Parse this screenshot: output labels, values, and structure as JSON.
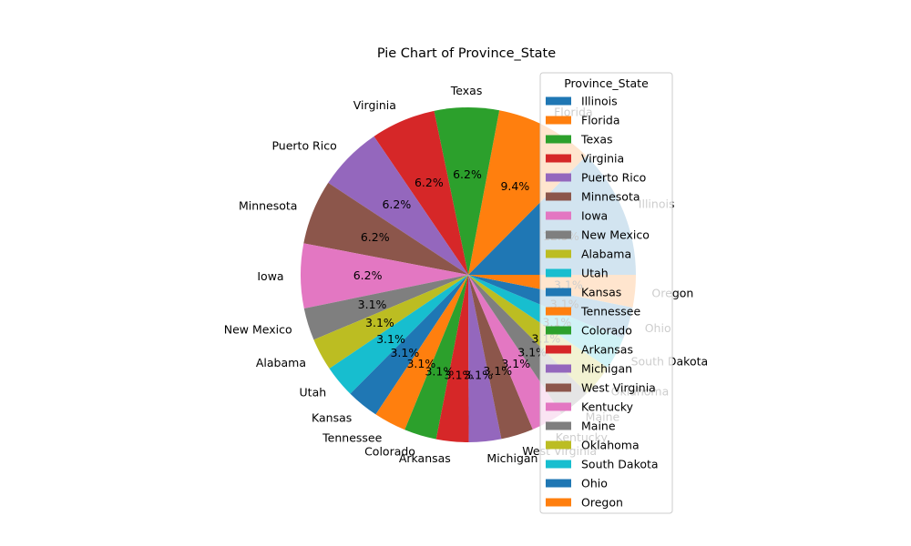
{
  "chart_data": {
    "type": "pie",
    "title": "Pie Chart of Province_State",
    "legend": {
      "title": "Province_State",
      "placement": "upper-right"
    },
    "start_angle_deg": 0,
    "direction": "counterclockwise",
    "slices": [
      {
        "label": "Illinois",
        "value": 12.5,
        "pct_label": "12.5%",
        "color": "#1f77b4"
      },
      {
        "label": "Florida",
        "value": 9.4,
        "pct_label": "9.4%",
        "color": "#ff7f0e"
      },
      {
        "label": "Texas",
        "value": 6.2,
        "pct_label": "6.2%",
        "color": "#2ca02c"
      },
      {
        "label": "Virginia",
        "value": 6.2,
        "pct_label": "6.2%",
        "color": "#d62728"
      },
      {
        "label": "Puerto Rico",
        "value": 6.2,
        "pct_label": "6.2%",
        "color": "#9467bd"
      },
      {
        "label": "Minnesota",
        "value": 6.2,
        "pct_label": "6.2%",
        "color": "#8c564b"
      },
      {
        "label": "Iowa",
        "value": 6.2,
        "pct_label": "6.2%",
        "color": "#e377c2"
      },
      {
        "label": "New Mexico",
        "value": 3.1,
        "pct_label": "3.1%",
        "color": "#7f7f7f"
      },
      {
        "label": "Alabama",
        "value": 3.1,
        "pct_label": "3.1%",
        "color": "#bcbd22"
      },
      {
        "label": "Utah",
        "value": 3.1,
        "pct_label": "3.1%",
        "color": "#17becf"
      },
      {
        "label": "Kansas",
        "value": 3.1,
        "pct_label": "3.1%",
        "color": "#1f77b4"
      },
      {
        "label": "Tennessee",
        "value": 3.1,
        "pct_label": "3.1%",
        "color": "#ff7f0e"
      },
      {
        "label": "Colorado",
        "value": 3.1,
        "pct_label": "3.1%",
        "color": "#2ca02c"
      },
      {
        "label": "Arkansas",
        "value": 3.1,
        "pct_label": "3.1%",
        "color": "#d62728"
      },
      {
        "label": "Michigan",
        "value": 3.1,
        "pct_label": "3.1%",
        "color": "#9467bd"
      },
      {
        "label": "West Virginia",
        "value": 3.1,
        "pct_label": "3.1%",
        "color": "#8c564b"
      },
      {
        "label": "Kentucky",
        "value": 3.1,
        "pct_label": "3.1%",
        "color": "#e377c2"
      },
      {
        "label": "Maine",
        "value": 3.1,
        "pct_label": "3.1%",
        "color": "#7f7f7f"
      },
      {
        "label": "Oklahoma",
        "value": 3.1,
        "pct_label": "3.1%",
        "color": "#bcbd22"
      },
      {
        "label": "South Dakota",
        "value": 3.1,
        "pct_label": "3.1%",
        "color": "#17becf"
      },
      {
        "label": "Ohio",
        "value": 3.1,
        "pct_label": "3.1%",
        "color": "#1f77b4"
      },
      {
        "label": "Oregon",
        "value": 3.1,
        "pct_label": "3.1%",
        "color": "#ff7f0e"
      }
    ]
  }
}
